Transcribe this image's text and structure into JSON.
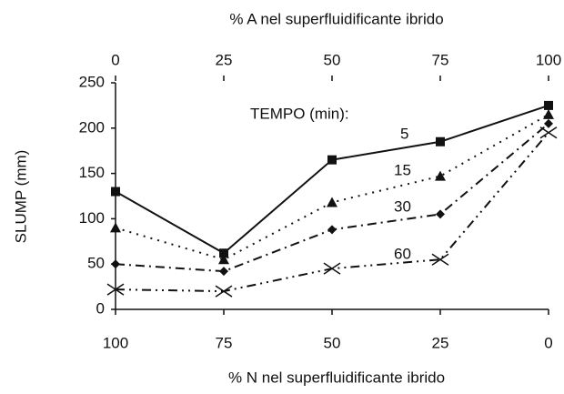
{
  "chart_data": {
    "type": "line",
    "x_label_top": "% A nel superfluidificante ibrido",
    "x_label_bottom": "% N nel superfluidificante ibrido",
    "y_label": "SLUMP (mm)",
    "legend_title": "TEMPO (min):",
    "x": [
      0,
      25,
      50,
      75,
      100
    ],
    "xlim": [
      0,
      100
    ],
    "xticks": [
      0,
      25,
      50,
      75,
      100
    ],
    "x2lim": [
      100,
      0
    ],
    "x2ticks": [
      100,
      75,
      50,
      25,
      0
    ],
    "ylim": [
      0,
      250
    ],
    "yticks": [
      0,
      50,
      100,
      150,
      200,
      250
    ],
    "series": [
      {
        "name": "5",
        "color": "#111111",
        "values": [
          130,
          62,
          165,
          185,
          225
        ]
      },
      {
        "name": "15",
        "color": "#111111",
        "values": [
          90,
          55,
          118,
          147,
          215
        ]
      },
      {
        "name": "30",
        "color": "#111111",
        "values": [
          50,
          42,
          88,
          105,
          205
        ]
      },
      {
        "name": "60",
        "color": "#111111",
        "values": [
          22,
          20,
          45,
          55,
          195
        ]
      }
    ]
  }
}
